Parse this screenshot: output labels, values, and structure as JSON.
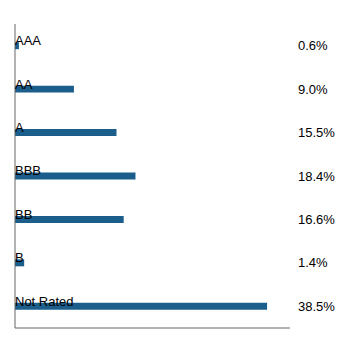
{
  "chart_data": {
    "type": "bar",
    "orientation": "horizontal",
    "categories": [
      "AAA",
      "AA",
      "A",
      "BBB",
      "BB",
      "B",
      "Not Rated"
    ],
    "values": [
      0.6,
      9.0,
      15.5,
      18.4,
      16.6,
      1.4,
      38.5
    ],
    "value_labels": [
      "0.6%",
      "9.0%",
      "15.5%",
      "18.4%",
      "16.6%",
      "1.4%",
      "38.5%"
    ],
    "data_labels": true,
    "color": "#1b5e8c",
    "xlim": [
      0,
      42
    ],
    "tick_labels": false,
    "grid": false
  }
}
